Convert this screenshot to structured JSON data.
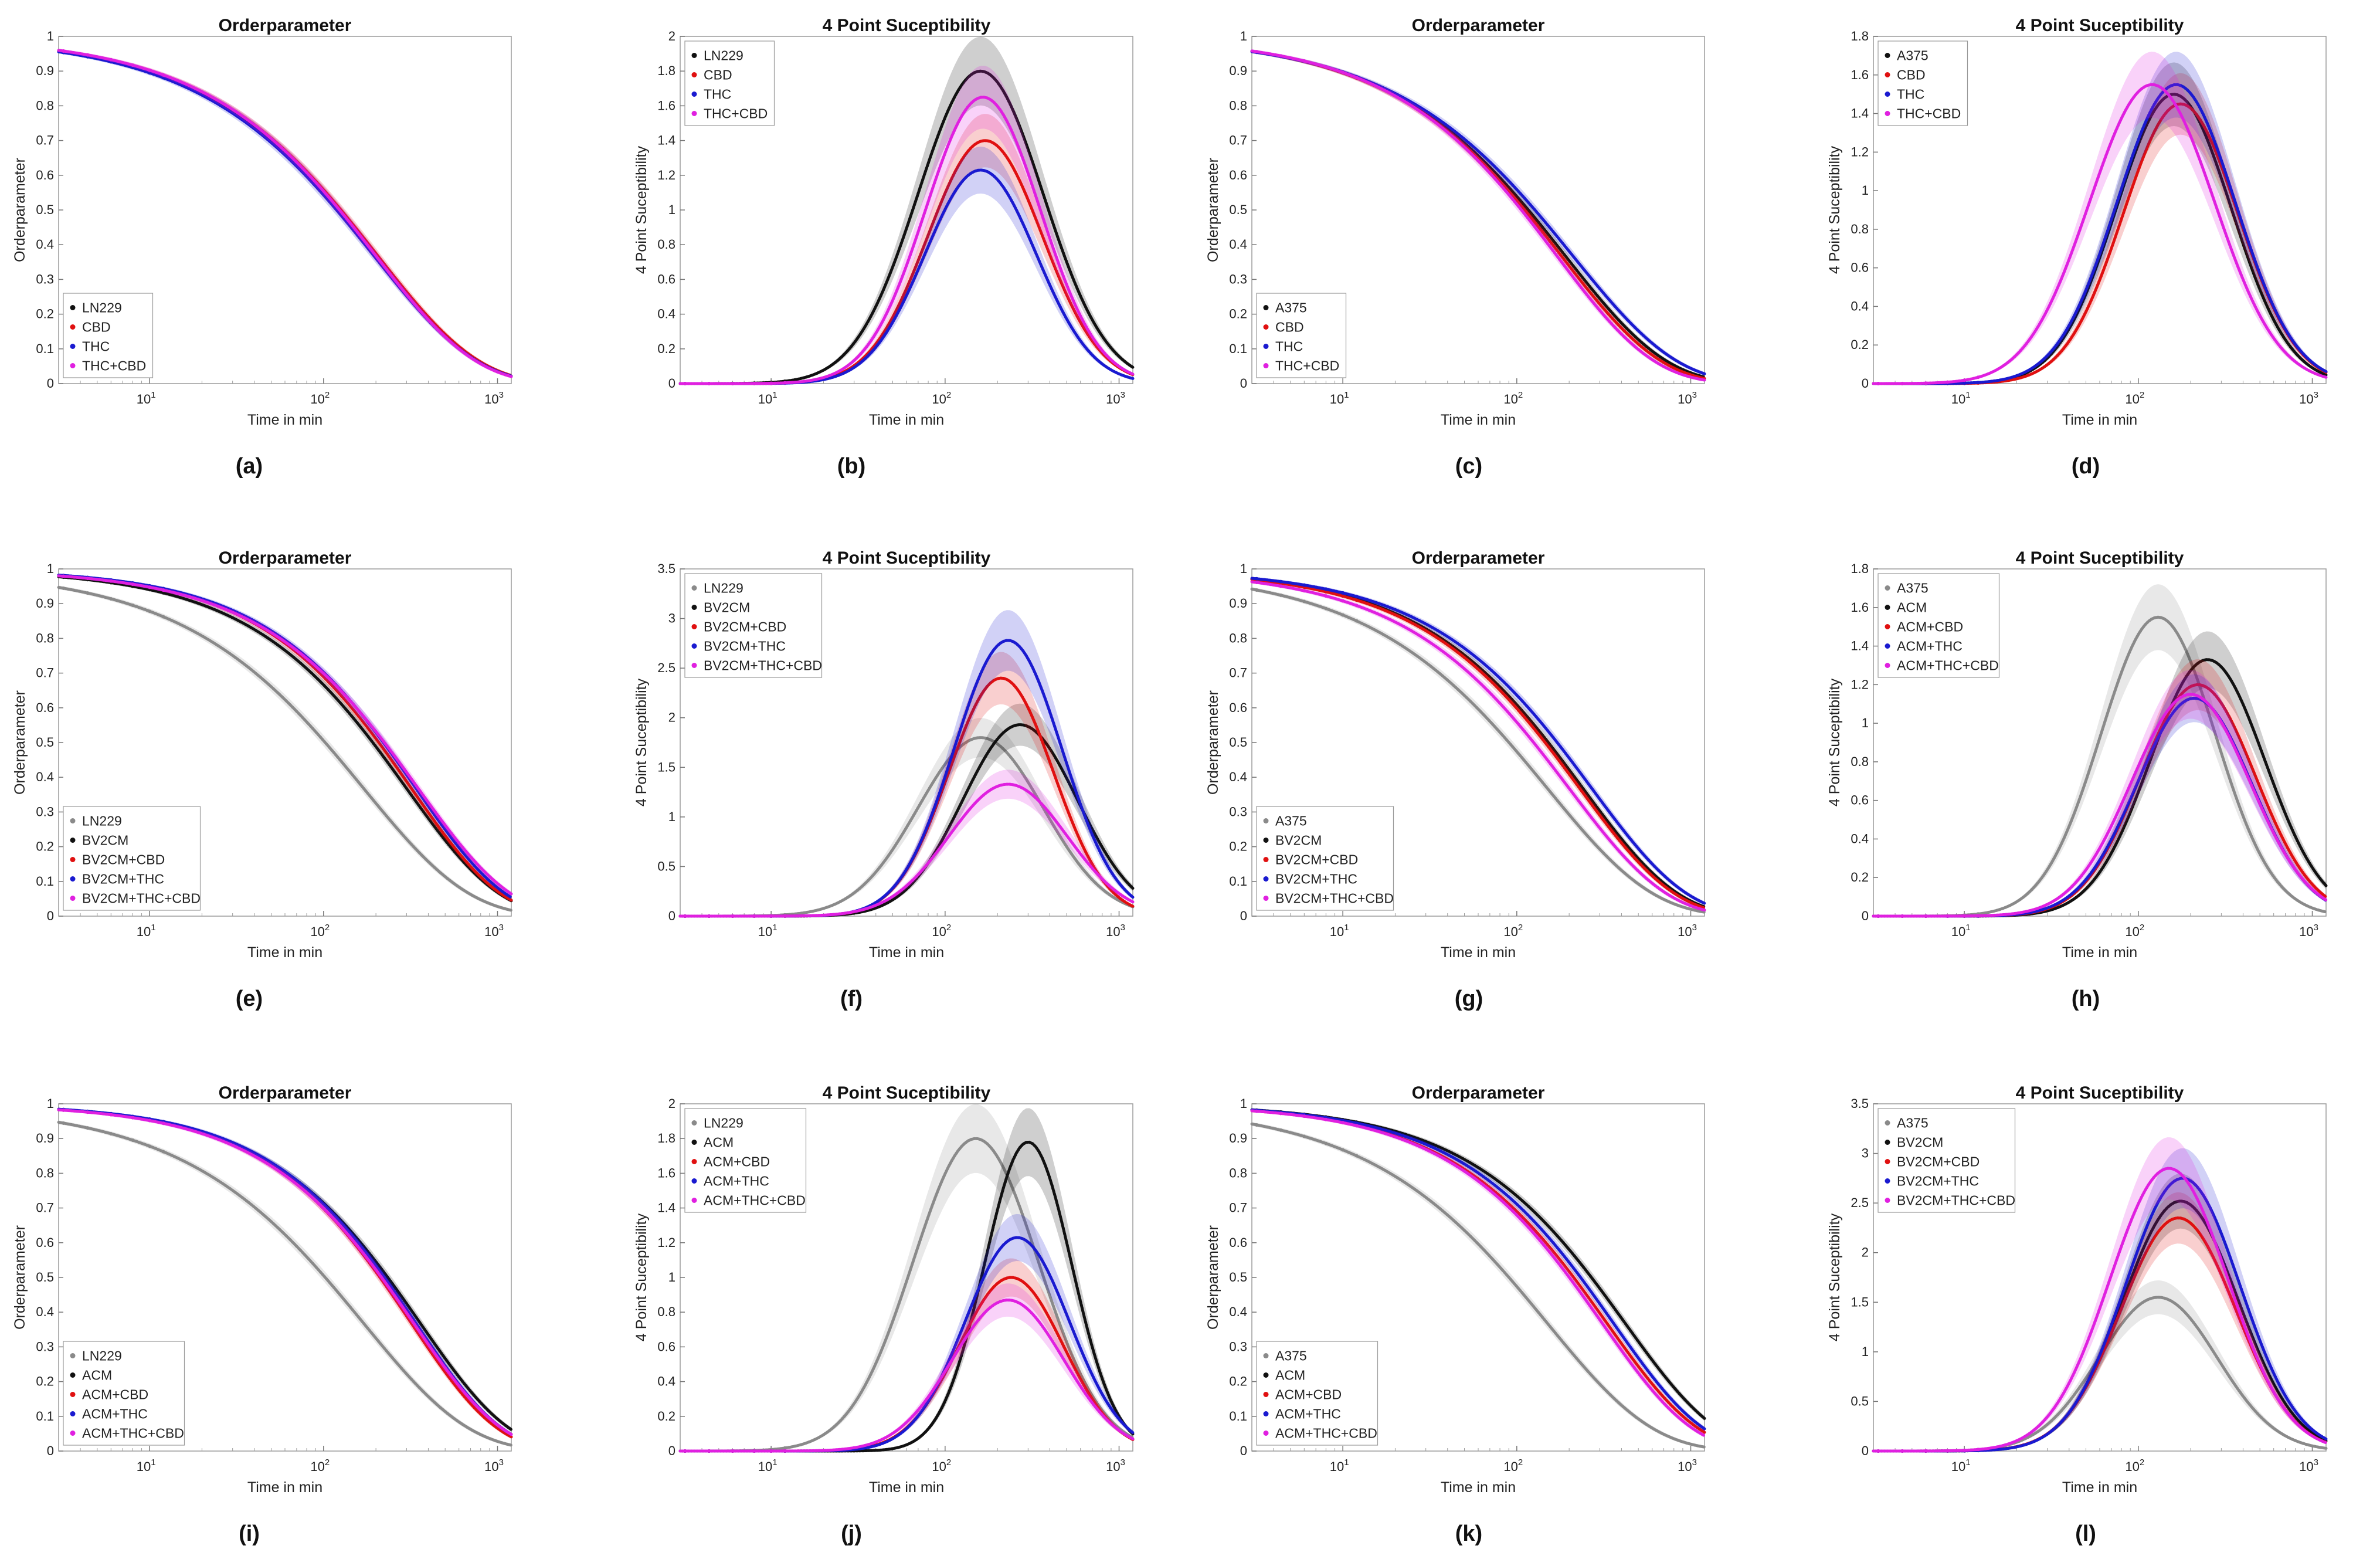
{
  "figure": {
    "description_labels": [
      "(a)",
      "(b)",
      "(c)",
      "(d)",
      "(e)",
      "(f)",
      "(g)",
      "(h)",
      "(i)",
      "(j)",
      "(k)",
      "(l)"
    ]
  },
  "colors": {
    "black": "#111111",
    "red": "#e01010",
    "blue": "#1a1ad0",
    "magenta": "#e020e0",
    "gray": "#8a8a8a"
  },
  "chart_data": [
    {
      "type": "line",
      "kind": "order",
      "caption": "(a)",
      "title": "Orderparameter",
      "xlabel": "Time in min",
      "ylabel": "Orderparameter",
      "xscale": "log",
      "xlim": [
        3,
        1200
      ],
      "ylim": [
        0,
        1
      ],
      "legend_position": "bottom-left",
      "series": [
        {
          "name": "LN229",
          "color": "black",
          "tau": 200,
          "beta": 0.75
        },
        {
          "name": "CBD",
          "color": "red",
          "tau": 205,
          "beta": 0.75
        },
        {
          "name": "THC",
          "color": "blue",
          "tau": 195,
          "beta": 0.74
        },
        {
          "name": "THC+CBD",
          "color": "magenta",
          "tau": 200,
          "beta": 0.76
        }
      ]
    },
    {
      "type": "line",
      "kind": "chi",
      "caption": "(b)",
      "title": "4 Point Suceptibility",
      "xlabel": "Time in min",
      "ylabel": "4 Point Suceptibility",
      "xscale": "log",
      "xlim": [
        3,
        1200
      ],
      "ylim": [
        0,
        2
      ],
      "ystep": 0.2,
      "legend_position": "top-left",
      "series": [
        {
          "name": "LN229",
          "color": "black",
          "peak": 1.8,
          "tpeak": 160,
          "sigma": 0.36
        },
        {
          "name": "CBD",
          "color": "red",
          "peak": 1.4,
          "tpeak": 170,
          "sigma": 0.33
        },
        {
          "name": "THC",
          "color": "blue",
          "peak": 1.23,
          "tpeak": 160,
          "sigma": 0.32
        },
        {
          "name": "THC+CBD",
          "color": "magenta",
          "peak": 1.65,
          "tpeak": 165,
          "sigma": 0.33
        }
      ]
    },
    {
      "type": "line",
      "kind": "order",
      "caption": "(c)",
      "title": "Orderparameter",
      "xlabel": "Time in min",
      "ylabel": "Orderparameter",
      "xscale": "log",
      "xlim": [
        3,
        1200
      ],
      "ylim": [
        0,
        1
      ],
      "legend_position": "bottom-left",
      "series": [
        {
          "name": "A375",
          "color": "black",
          "tau": 190,
          "beta": 0.75
        },
        {
          "name": "CBD",
          "color": "red",
          "tau": 180,
          "beta": 0.76
        },
        {
          "name": "THC",
          "color": "blue",
          "tau": 210,
          "beta": 0.73
        },
        {
          "name": "THC+CBD",
          "color": "magenta",
          "tau": 170,
          "beta": 0.78
        }
      ]
    },
    {
      "type": "line",
      "kind": "chi",
      "caption": "(d)",
      "title": "4 Point Suceptibility",
      "xlabel": "Time in min",
      "ylabel": "4 Point Suceptibility",
      "xscale": "log",
      "xlim": [
        3,
        1200
      ],
      "ylim": [
        0,
        1.8
      ],
      "ystep": 0.2,
      "legend_position": "top-left",
      "series": [
        {
          "name": "A375",
          "color": "black",
          "peak": 1.5,
          "tpeak": 160,
          "sigma": 0.33
        },
        {
          "name": "CBD",
          "color": "red",
          "peak": 1.45,
          "tpeak": 175,
          "sigma": 0.33
        },
        {
          "name": "THC",
          "color": "blue",
          "peak": 1.55,
          "tpeak": 165,
          "sigma": 0.34
        },
        {
          "name": "THC+CBD",
          "color": "magenta",
          "peak": 1.55,
          "tpeak": 120,
          "sigma": 0.36
        }
      ]
    },
    {
      "type": "line",
      "kind": "order",
      "caption": "(e)",
      "title": "Orderparameter",
      "xlabel": "Time in min",
      "ylabel": "Orderparameter",
      "xscale": "log",
      "xlim": [
        3,
        1200
      ],
      "ylim": [
        0,
        1
      ],
      "legend_position": "bottom-left",
      "series": [
        {
          "name": "LN229",
          "color": "gray",
          "tau": 170,
          "beta": 0.72
        },
        {
          "name": "BV2CM",
          "color": "black",
          "tau": 300,
          "beta": 0.82
        },
        {
          "name": "BV2CM+CBD",
          "color": "red",
          "tau": 320,
          "beta": 0.85
        },
        {
          "name": "BV2CM+THC",
          "color": "blue",
          "tau": 340,
          "beta": 0.85
        },
        {
          "name": "BV2CM+THC+CBD",
          "color": "magenta",
          "tau": 350,
          "beta": 0.82
        }
      ]
    },
    {
      "type": "line",
      "kind": "chi",
      "caption": "(f)",
      "title": "4 Point Suceptibility",
      "xlabel": "Time in min",
      "ylabel": "4 Point Suceptibility",
      "xscale": "log",
      "xlim": [
        3,
        1200
      ],
      "ylim": [
        0,
        3.5
      ],
      "ystep": 0.5,
      "legend_position": "top-left",
      "series": [
        {
          "name": "LN229",
          "color": "gray",
          "peak": 1.8,
          "tpeak": 160,
          "sigma": 0.36
        },
        {
          "name": "BV2CM",
          "color": "black",
          "peak": 1.93,
          "tpeak": 270,
          "sigma": 0.33
        },
        {
          "name": "BV2CM+CBD",
          "color": "red",
          "peak": 2.4,
          "tpeak": 210,
          "sigma": 0.3
        },
        {
          "name": "BV2CM+THC",
          "color": "blue",
          "peak": 2.78,
          "tpeak": 230,
          "sigma": 0.31
        },
        {
          "name": "BV2CM+THC+CBD",
          "color": "magenta",
          "peak": 1.33,
          "tpeak": 230,
          "sigma": 0.34
        }
      ]
    },
    {
      "type": "line",
      "kind": "order",
      "caption": "(g)",
      "title": "Orderparameter",
      "xlabel": "Time in min",
      "ylabel": "Orderparameter",
      "xscale": "log",
      "xlim": [
        3,
        1200
      ],
      "ylim": [
        0,
        1
      ],
      "legend_position": "bottom-left",
      "series": [
        {
          "name": "A375",
          "color": "gray",
          "tau": 150,
          "beta": 0.72
        },
        {
          "name": "BV2CM",
          "color": "black",
          "tau": 240,
          "beta": 0.8
        },
        {
          "name": "BV2CM+CBD",
          "color": "red",
          "tau": 230,
          "beta": 0.8
        },
        {
          "name": "BV2CM+THC",
          "color": "blue",
          "tau": 270,
          "beta": 0.8
        },
        {
          "name": "BV2CM+THC+CBD",
          "color": "magenta",
          "tau": 200,
          "beta": 0.78
        }
      ]
    },
    {
      "type": "line",
      "kind": "chi",
      "caption": "(h)",
      "title": "4 Point Suceptibility",
      "xlabel": "Time in min",
      "ylabel": "4 Point Suceptibility",
      "xscale": "log",
      "xlim": [
        3,
        1200
      ],
      "ylim": [
        0,
        1.8
      ],
      "ystep": 0.2,
      "legend_position": "top-left",
      "series": [
        {
          "name": "A375",
          "color": "gray",
          "peak": 1.55,
          "tpeak": 130,
          "sigma": 0.33
        },
        {
          "name": "ACM",
          "color": "black",
          "peak": 1.33,
          "tpeak": 250,
          "sigma": 0.33
        },
        {
          "name": "ACM+CBD",
          "color": "red",
          "peak": 1.2,
          "tpeak": 220,
          "sigma": 0.33
        },
        {
          "name": "ACM+THC",
          "color": "blue",
          "peak": 1.13,
          "tpeak": 210,
          "sigma": 0.33
        },
        {
          "name": "ACM+THC+CBD",
          "color": "magenta",
          "peak": 1.15,
          "tpeak": 200,
          "sigma": 0.34
        }
      ]
    },
    {
      "type": "line",
      "kind": "order",
      "caption": "(i)",
      "title": "Orderparameter",
      "xlabel": "Time in min",
      "ylabel": "Orderparameter",
      "xscale": "log",
      "xlim": [
        3,
        1200
      ],
      "ylim": [
        0,
        1
      ],
      "legend_position": "bottom-left",
      "series": [
        {
          "name": "LN229",
          "color": "gray",
          "tau": 170,
          "beta": 0.72
        },
        {
          "name": "ACM",
          "color": "black",
          "tau": 360,
          "beta": 0.85
        },
        {
          "name": "ACM+CBD",
          "color": "red",
          "tau": 320,
          "beta": 0.88
        },
        {
          "name": "ACM+THC",
          "color": "blue",
          "tau": 340,
          "beta": 0.88
        },
        {
          "name": "ACM+THC+CBD",
          "color": "magenta",
          "tau": 330,
          "beta": 0.86
        }
      ]
    },
    {
      "type": "line",
      "kind": "chi",
      "caption": "(j)",
      "title": "4 Point Suceptibility",
      "xlabel": "Time in min",
      "ylabel": "4 Point Suceptibility",
      "xscale": "log",
      "xlim": [
        3,
        1200
      ],
      "ylim": [
        0,
        2
      ],
      "ystep": 0.2,
      "legend_position": "top-left",
      "series": [
        {
          "name": "LN229",
          "color": "gray",
          "peak": 1.8,
          "tpeak": 150,
          "sigma": 0.36
        },
        {
          "name": "ACM",
          "color": "black",
          "peak": 1.78,
          "tpeak": 300,
          "sigma": 0.25
        },
        {
          "name": "ACM+CBD",
          "color": "red",
          "peak": 1.0,
          "tpeak": 240,
          "sigma": 0.3
        },
        {
          "name": "ACM+THC",
          "color": "blue",
          "peak": 1.23,
          "tpeak": 260,
          "sigma": 0.3
        },
        {
          "name": "ACM+THC+CBD",
          "color": "magenta",
          "peak": 0.87,
          "tpeak": 230,
          "sigma": 0.32
        }
      ]
    },
    {
      "type": "line",
      "kind": "order",
      "caption": "(k)",
      "title": "Orderparameter",
      "xlabel": "Time in min",
      "ylabel": "Orderparameter",
      "xscale": "log",
      "xlim": [
        3,
        1200
      ],
      "ylim": [
        0,
        1
      ],
      "legend_position": "bottom-left",
      "series": [
        {
          "name": "A375",
          "color": "gray",
          "tau": 150,
          "beta": 0.72
        },
        {
          "name": "ACM",
          "color": "black",
          "tau": 420,
          "beta": 0.82
        },
        {
          "name": "ACM+CBD",
          "color": "red",
          "tau": 330,
          "beta": 0.83
        },
        {
          "name": "ACM+THC",
          "color": "blue",
          "tau": 360,
          "beta": 0.84
        },
        {
          "name": "ACM+THC+CBD",
          "color": "magenta",
          "tau": 310,
          "beta": 0.84
        }
      ]
    },
    {
      "type": "line",
      "kind": "chi",
      "caption": "(l)",
      "title": "4 Point Suceptibility",
      "xlabel": "Time in min",
      "ylabel": "4 Point Suceptibility",
      "xscale": "log",
      "xlim": [
        3,
        1200
      ],
      "ylim": [
        0,
        3.5
      ],
      "ystep": 0.5,
      "legend_position": "top-left",
      "series": [
        {
          "name": "A375",
          "color": "gray",
          "peak": 1.55,
          "tpeak": 130,
          "sigma": 0.34
        },
        {
          "name": "BV2CM",
          "color": "black",
          "peak": 2.52,
          "tpeak": 175,
          "sigma": 0.33
        },
        {
          "name": "BV2CM+CBD",
          "color": "red",
          "peak": 2.35,
          "tpeak": 170,
          "sigma": 0.33
        },
        {
          "name": "BV2CM+THC",
          "color": "blue",
          "peak": 2.75,
          "tpeak": 180,
          "sigma": 0.33
        },
        {
          "name": "BV2CM+THC+CBD",
          "color": "magenta",
          "peak": 2.85,
          "tpeak": 150,
          "sigma": 0.34
        }
      ]
    }
  ]
}
